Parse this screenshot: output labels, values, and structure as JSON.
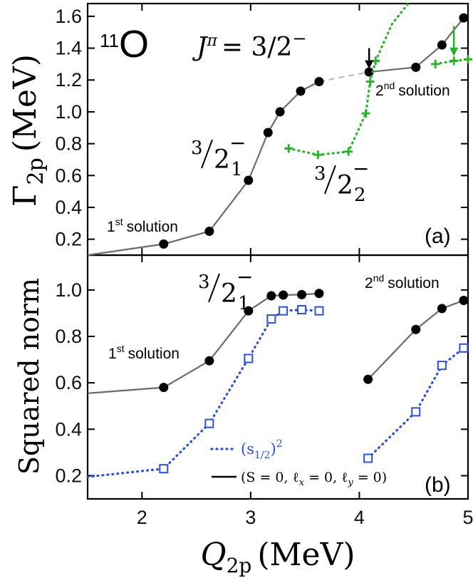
{
  "chart_data": [
    {
      "type": "line",
      "panel_label": "(a)",
      "nucleus_mass": "11",
      "nucleus_symbol": "O",
      "jpi_label": "J",
      "jpi_super": "π",
      "jpi_value": "= 3/2",
      "jpi_sign": "−",
      "ylabel_main": "Γ",
      "ylabel_sub": "2p",
      "ylabel_unit": "(MeV)",
      "xlim": [
        1.5,
        5.0
      ],
      "ylim": [
        0.1,
        1.68
      ],
      "yticks": [
        "0.2",
        "0.4",
        "0.6",
        "0.8",
        "1.0",
        "1.2",
        "1.4",
        "1.6"
      ],
      "ytick_values": [
        0.2,
        0.4,
        0.6,
        0.8,
        1.0,
        1.2,
        1.4,
        1.6
      ],
      "series": [
        {
          "name": "3/2_1^- (black)",
          "color": "#000000",
          "line_color": "#6b6b6b",
          "marker": "circle",
          "x": [
            1.5,
            2.2,
            2.62,
            2.98,
            3.16,
            3.27,
            3.46,
            3.63
          ],
          "y": [
            0.1,
            0.17,
            0.25,
            0.57,
            0.87,
            1.0,
            1.13,
            1.19
          ],
          "marker_from_index": 1
        },
        {
          "name": "3/2_1^- second solution (black)",
          "color": "#000000",
          "line_color": "#6b6b6b",
          "marker": "circle",
          "x": [
            4.09,
            4.52,
            4.76,
            4.96
          ],
          "y": [
            1.25,
            1.28,
            1.42,
            1.59
          ]
        },
        {
          "name": "3/2_2^- (green)",
          "color": "#22b422",
          "marker": "plus",
          "dotted": true,
          "x": [
            3.35,
            3.62,
            3.9,
            4.06,
            4.1,
            4.15
          ],
          "y": [
            0.77,
            0.73,
            0.75,
            0.99,
            1.19,
            1.32
          ]
        },
        {
          "name": "3/2_2^- second solution (green)",
          "color": "#22b422",
          "marker": "plus",
          "dotted": true,
          "x": [
            4.7,
            4.87,
            5.0
          ],
          "y": [
            1.3,
            1.32,
            1.33
          ]
        }
      ],
      "green_rise": {
        "x": [
          4.15,
          4.3,
          4.45
        ],
        "y": [
          1.32,
          1.55,
          1.68
        ]
      },
      "connector": {
        "x": [
          3.63,
          4.09
        ],
        "y": [
          1.19,
          1.25
        ],
        "color": "#bbbbbb"
      },
      "arrows": [
        {
          "x": 4.09,
          "y_from": 1.4,
          "y_to": 1.27,
          "color": "#000000"
        },
        {
          "x": 4.87,
          "y_from": 1.54,
          "y_to": 1.35,
          "color": "#22b422"
        }
      ],
      "annotations": {
        "first_solution": {
          "prefix": "1",
          "sup": "st",
          "text": "solution"
        },
        "second_solution": {
          "prefix": "2",
          "sup": "nd",
          "text": "solution"
        },
        "state1": {
          "num": "3",
          "den": "2",
          "sub": "1",
          "sign": "−"
        },
        "state2": {
          "num": "3",
          "den": "2",
          "sub": "2",
          "sign": "−"
        }
      }
    },
    {
      "type": "line",
      "panel_label": "(b)",
      "ylabel": "Squared norm",
      "xlabel_main": "Q",
      "xlabel_sub": "2p",
      "xlabel_unit": "(MeV)",
      "xlim": [
        1.5,
        5.0
      ],
      "ylim": [
        0.1,
        1.15
      ],
      "xticks": [
        "2",
        "3",
        "4",
        "5"
      ],
      "xtick_values": [
        2,
        3,
        4,
        5
      ],
      "yticks": [
        "0.2",
        "0.4",
        "0.6",
        "0.8",
        "1.0"
      ],
      "ytick_values": [
        0.2,
        0.4,
        0.6,
        0.8,
        1.0
      ],
      "series": [
        {
          "name": "(S=0, ℓx=0, ℓy=0)",
          "color": "#000000",
          "line_color": "#6b6b6b",
          "marker": "circle",
          "x": [
            1.5,
            2.2,
            2.62,
            2.98,
            3.19,
            3.3,
            3.47,
            3.63
          ],
          "y": [
            0.555,
            0.58,
            0.695,
            0.91,
            0.975,
            0.978,
            0.98,
            0.985
          ],
          "marker_from_index": 1
        },
        {
          "name": "(S=0, ℓx=0, ℓy=0) second",
          "color": "#000000",
          "line_color": "#6b6b6b",
          "marker": "circle",
          "x": [
            4.08,
            4.52,
            4.76,
            4.96
          ],
          "y": [
            0.615,
            0.83,
            0.92,
            0.955
          ]
        },
        {
          "name": "(s1/2)^2",
          "color": "#2b4ee6",
          "marker": "square",
          "dotted": true,
          "x": [
            1.5,
            2.2,
            2.62,
            2.98,
            3.19,
            3.3,
            3.47,
            3.63
          ],
          "y": [
            0.195,
            0.23,
            0.425,
            0.705,
            0.875,
            0.91,
            0.915,
            0.91
          ],
          "marker_from_index": 1
        },
        {
          "name": "(s1/2)^2 second",
          "color": "#2b4ee6",
          "marker": "square",
          "dotted": true,
          "x": [
            4.08,
            4.52,
            4.76,
            4.96
          ],
          "y": [
            0.275,
            0.475,
            0.675,
            0.75
          ]
        }
      ],
      "annotations": {
        "first_solution": {
          "prefix": "1",
          "sup": "st",
          "text": "solution"
        },
        "second_solution": {
          "prefix": "2",
          "sup": "nd",
          "text": "solution"
        },
        "state1": {
          "num": "3",
          "den": "2",
          "sub": "1",
          "sign": "−"
        }
      },
      "legend": [
        {
          "label_main": "(s",
          "label_sub": "1/2",
          "label_tail": ")",
          "label_sup": "2",
          "color": "#2b4ee6",
          "style": "dotted"
        },
        {
          "label_text": "(S = 0, ℓ",
          "label_x": "x",
          "label_mid": " = 0, ℓ",
          "label_y": "y",
          "label_end": " = 0)",
          "color": "#000000",
          "style": "solid"
        }
      ]
    }
  ]
}
